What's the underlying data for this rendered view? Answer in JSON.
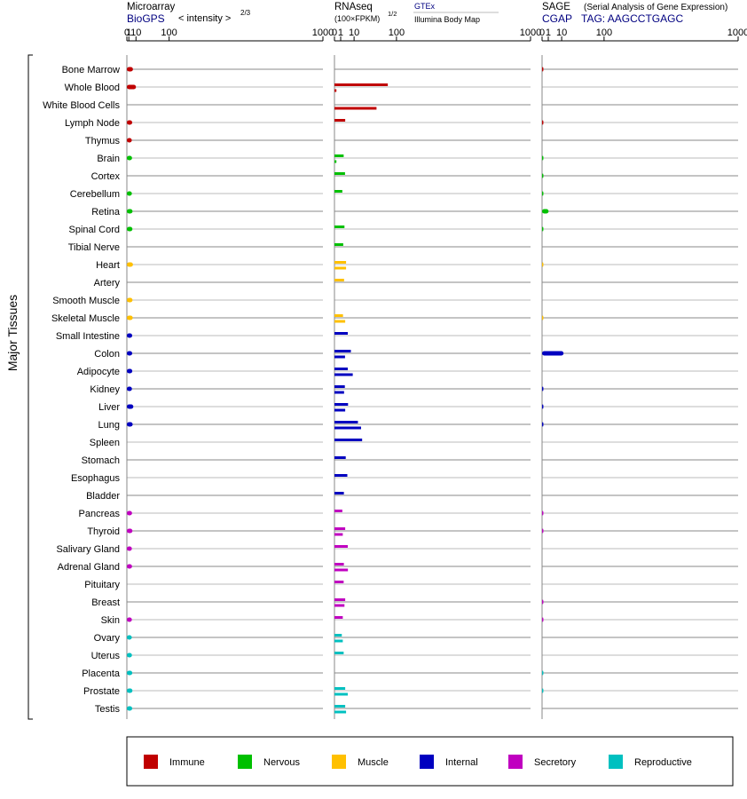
{
  "colors": {
    "Immune": "#c00000",
    "Nervous": "#00c000",
    "Muscle": "#ffc000",
    "Internal": "#0000c0",
    "Secretory": "#c000c0",
    "Reproductive": "#00c0c0"
  },
  "side_label": "Major Tissues",
  "panels": {
    "microarray": {
      "title": "Microarray",
      "source": "BioGPS",
      "scale_text": "< intensity >",
      "scale_exponent": "2/3"
    },
    "rnaseq": {
      "title": "RNAseq",
      "unit": "(100×FPKM)",
      "unit_exponent": "1/2",
      "source_a": "GTEx",
      "source_b": "Illumina Body Map"
    },
    "sage": {
      "title": "SAGE",
      "subtitle": "(Serial Analysis of Gene Expression)",
      "source": "CGAP",
      "tag": "TAG: AAGCCTGAGC"
    }
  },
  "chart_data": [
    {
      "type": "bar",
      "name": "Microarray",
      "xscale": "power 2/3",
      "xlim": [
        0,
        1000
      ],
      "xticks": [
        "0",
        "1",
        "10",
        "100",
        "1000"
      ],
      "categories": [
        "Bone Marrow",
        "Whole Blood",
        "White Blood Cells",
        "Lymph Node",
        "Thymus",
        "Brain",
        "Cortex",
        "Cerebellum",
        "Retina",
        "Spinal Cord",
        "Tibial Nerve",
        "Heart",
        "Artery",
        "Smooth Muscle",
        "Skeletal Muscle",
        "Small Intestine",
        "Colon",
        "Adipocyte",
        "Kidney",
        "Liver",
        "Lung",
        "Spleen",
        "Stomach",
        "Esophagus",
        "Bladder",
        "Pancreas",
        "Thyroid",
        "Salivary Gland",
        "Adrenal Gland",
        "Pituitary",
        "Breast",
        "Skin",
        "Ovary",
        "Uterus",
        "Placenta",
        "Prostate",
        "Testis"
      ],
      "groups": [
        "Immune",
        "Immune",
        "Immune",
        "Immune",
        "Immune",
        "Nervous",
        "Nervous",
        "Nervous",
        "Nervous",
        "Nervous",
        "Nervous",
        "Muscle",
        "Muscle",
        "Muscle",
        "Muscle",
        "Internal",
        "Internal",
        "Internal",
        "Internal",
        "Internal",
        "Internal",
        "Internal",
        "Internal",
        "Internal",
        "Internal",
        "Secretory",
        "Secretory",
        "Secretory",
        "Secretory",
        "Secretory",
        "Secretory",
        "Secretory",
        "Reproductive",
        "Reproductive",
        "Reproductive",
        "Reproductive",
        "Reproductive"
      ],
      "values": [
        5.5,
        10,
        null,
        4.5,
        4,
        4.3,
        null,
        4.1,
        4.9,
        4.8,
        null,
        5.5,
        null,
        4.9,
        5.2,
        4.5,
        4.5,
        4.6,
        4.2,
        6,
        5.1,
        null,
        null,
        null,
        null,
        4.3,
        4.8,
        4.1,
        4.3,
        null,
        null,
        4.1,
        4,
        4.2,
        4.6,
        4.8,
        4.5
      ]
    },
    {
      "type": "bar",
      "name": "RNAseq",
      "xscale": "power 1/2",
      "xlim": [
        0,
        1000
      ],
      "xticks": [
        "0",
        "1",
        "10",
        "100",
        "1000"
      ],
      "categories": [
        "Bone Marrow",
        "Whole Blood",
        "White Blood Cells",
        "Lymph Node",
        "Thymus",
        "Brain",
        "Cortex",
        "Cerebellum",
        "Retina",
        "Spinal Cord",
        "Tibial Nerve",
        "Heart",
        "Artery",
        "Smooth Muscle",
        "Skeletal Muscle",
        "Small Intestine",
        "Colon",
        "Adipocyte",
        "Kidney",
        "Liver",
        "Lung",
        "Spleen",
        "Stomach",
        "Esophagus",
        "Bladder",
        "Pancreas",
        "Thyroid",
        "Salivary Gland",
        "Adrenal Gland",
        "Pituitary",
        "Breast",
        "Skin",
        "Ovary",
        "Uterus",
        "Placenta",
        "Prostate",
        "Testis"
      ],
      "series": [
        {
          "name": "GTEx",
          "values": [
            null,
            74,
            null,
            3.0,
            null,
            2.2,
            2.9,
            1.6,
            null,
            2.6,
            2.0,
            3.5,
            2.4,
            null,
            1.9,
            4.6,
            7.0,
            4.6,
            2.8,
            4.8,
            14.3,
            19.9,
            3.3,
            4.3,
            2.3,
            1.6,
            3.0,
            4.6,
            2.3,
            2.2,
            3.0,
            1.8,
            1.4,
            2.2,
            null,
            3.0,
            3.0
          ]
        },
        {
          "name": "Illumina Body Map",
          "values": [
            null,
            0.1,
            46,
            null,
            null,
            0.1,
            null,
            null,
            null,
            null,
            null,
            3.5,
            null,
            null,
            3.0,
            null,
            2.9,
            8.7,
            2.4,
            3.0,
            18.4,
            null,
            null,
            null,
            null,
            null,
            1.8,
            null,
            4.7,
            null,
            2.6,
            null,
            1.8,
            null,
            null,
            4.6,
            3.5
          ]
        }
      ]
    },
    {
      "type": "bar",
      "name": "SAGE",
      "xscale": "power 1/2",
      "xlim": [
        0,
        1000
      ],
      "xticks": [
        "0",
        "1",
        "10",
        "100",
        "1000"
      ],
      "categories": [
        "Bone Marrow",
        "Whole Blood",
        "White Blood Cells",
        "Lymph Node",
        "Thymus",
        "Brain",
        "Cortex",
        "Cerebellum",
        "Retina",
        "Spinal Cord",
        "Tibial Nerve",
        "Heart",
        "Artery",
        "Smooth Muscle",
        "Skeletal Muscle",
        "Small Intestine",
        "Colon",
        "Adipocyte",
        "Kidney",
        "Liver",
        "Lung",
        "Spleen",
        "Stomach",
        "Esophagus",
        "Bladder",
        "Pancreas",
        "Thyroid",
        "Salivary Gland",
        "Adrenal Gland",
        "Pituitary",
        "Breast",
        "Skin",
        "Ovary",
        "Uterus",
        "Placenta",
        "Prostate",
        "Testis"
      ],
      "values": [
        0.02,
        null,
        null,
        0.02,
        null,
        0.02,
        0.02,
        0.02,
        1.1,
        0.02,
        null,
        0.01,
        null,
        null,
        0.01,
        null,
        12,
        null,
        0.02,
        0.02,
        0.02,
        null,
        null,
        null,
        null,
        0.02,
        0.02,
        null,
        null,
        null,
        0.02,
        0.02,
        null,
        null,
        0.02,
        0.02,
        null
      ]
    }
  ],
  "legend": [
    "Immune",
    "Nervous",
    "Muscle",
    "Internal",
    "Secretory",
    "Reproductive"
  ]
}
